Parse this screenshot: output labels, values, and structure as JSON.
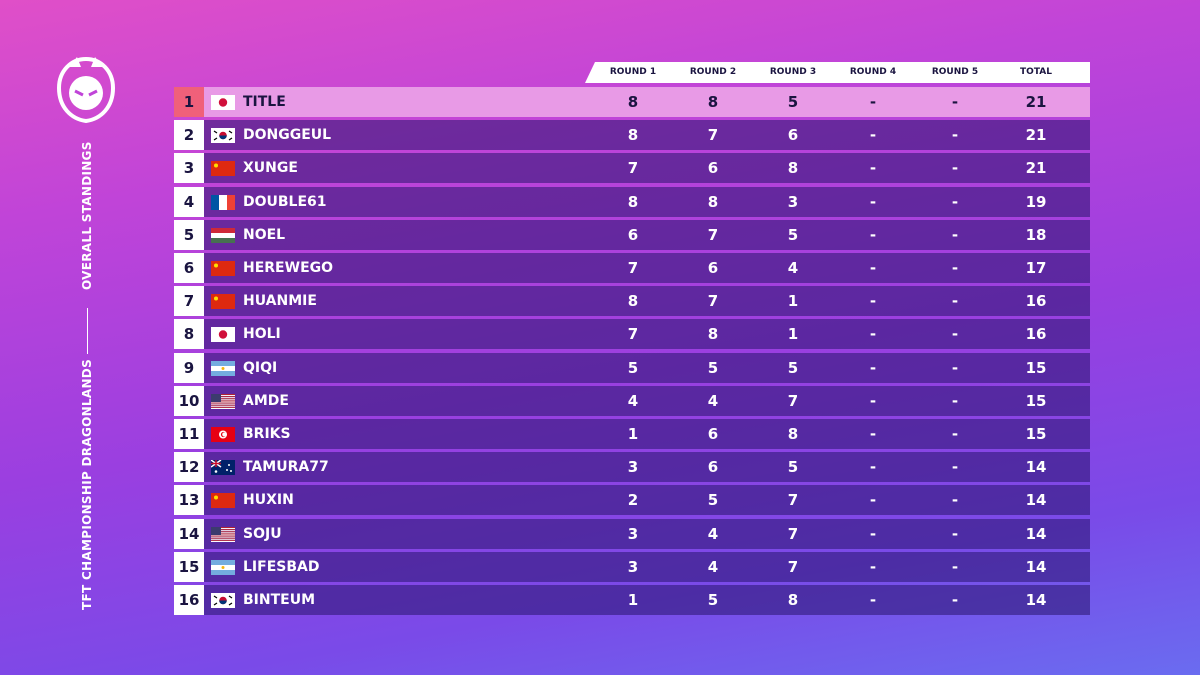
{
  "sidebar": {
    "subtitle": "OVERALL STANDINGS",
    "title": "TFT CHAMPIONSHIP DRAGONLANDS"
  },
  "table": {
    "header": [
      "ROUND 1",
      "ROUND 2",
      "ROUND 3",
      "ROUND 4",
      "ROUND 5",
      "TOTAL"
    ],
    "rows": [
      [
        "1",
        "TITLE",
        "8",
        "8",
        "5",
        "-",
        "-",
        "21"
      ],
      [
        "2",
        "DONGGEUL",
        "8",
        "7",
        "6",
        "-",
        "-",
        "21"
      ],
      [
        "3",
        "XUNGE",
        "7",
        "6",
        "8",
        "-",
        "-",
        "21"
      ],
      [
        "4",
        "DOUBLE61",
        "8",
        "8",
        "3",
        "-",
        "-",
        "19"
      ],
      [
        "5",
        "NOEL",
        "6",
        "7",
        "5",
        "-",
        "-",
        "18"
      ],
      [
        "6",
        "HEREWEGO",
        "7",
        "6",
        "4",
        "-",
        "-",
        "17"
      ],
      [
        "7",
        "HUANMIE",
        "8",
        "7",
        "1",
        "-",
        "-",
        "16"
      ],
      [
        "8",
        "HOLI",
        "7",
        "8",
        "1",
        "-",
        "-",
        "16"
      ],
      [
        "9",
        "QIQI",
        "5",
        "5",
        "5",
        "-",
        "-",
        "15"
      ],
      [
        "10",
        "AMDE",
        "4",
        "4",
        "7",
        "-",
        "-",
        "15"
      ],
      [
        "11",
        "BRIKS",
        "1",
        "6",
        "8",
        "-",
        "-",
        "15"
      ],
      [
        "12",
        "TAMURA77",
        "3",
        "6",
        "5",
        "-",
        "-",
        "14"
      ],
      [
        "13",
        "HUXIN",
        "2",
        "5",
        "7",
        "-",
        "-",
        "14"
      ],
      [
        "14",
        "SOJU",
        "3",
        "4",
        "7",
        "-",
        "-",
        "14"
      ],
      [
        "15",
        "LIFESBAD",
        "3",
        "4",
        "7",
        "-",
        "-",
        "14"
      ],
      [
        "16",
        "BINTEUM",
        "1",
        "5",
        "8",
        "-",
        "-",
        "14"
      ]
    ]
  }
}
